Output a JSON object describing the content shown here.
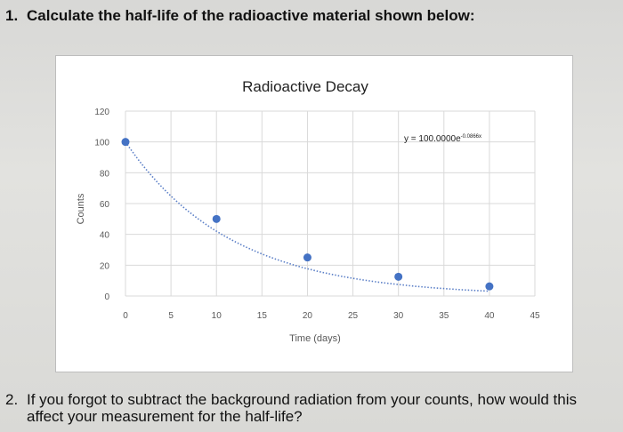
{
  "questions": {
    "q1": {
      "number": "1.",
      "text": "Calculate the half-life of the radioactive material shown below:"
    },
    "q2": {
      "number": "2.",
      "text": "If you forgot to subtract the background radiation from your counts, how would this affect your measurement for the half-life?"
    }
  },
  "chart_data": {
    "type": "scatter",
    "title": "Radioactive Decay",
    "xlabel": "Time (days)",
    "ylabel": "Counts",
    "xlim": [
      0,
      45
    ],
    "ylim": [
      0,
      120
    ],
    "x_ticks": [
      0,
      5,
      10,
      15,
      20,
      25,
      30,
      35,
      40,
      45
    ],
    "y_ticks": [
      0,
      20,
      40,
      60,
      80,
      100,
      120
    ],
    "grid": true,
    "legend": "none",
    "trendline": {
      "type": "exponential",
      "equation": "y = 100.0000e",
      "exponent": "-0.0866x",
      "a": 100.0,
      "b": -0.0866
    },
    "series": [
      {
        "x": [
          0,
          10,
          20,
          30,
          40
        ],
        "values": [
          100,
          50,
          25,
          12.5,
          6.25
        ]
      }
    ],
    "colors": {
      "point": "#4472c4",
      "trend": "#5b7fc7",
      "grid": "#d9d9d9",
      "axis_text": "#595959"
    }
  }
}
